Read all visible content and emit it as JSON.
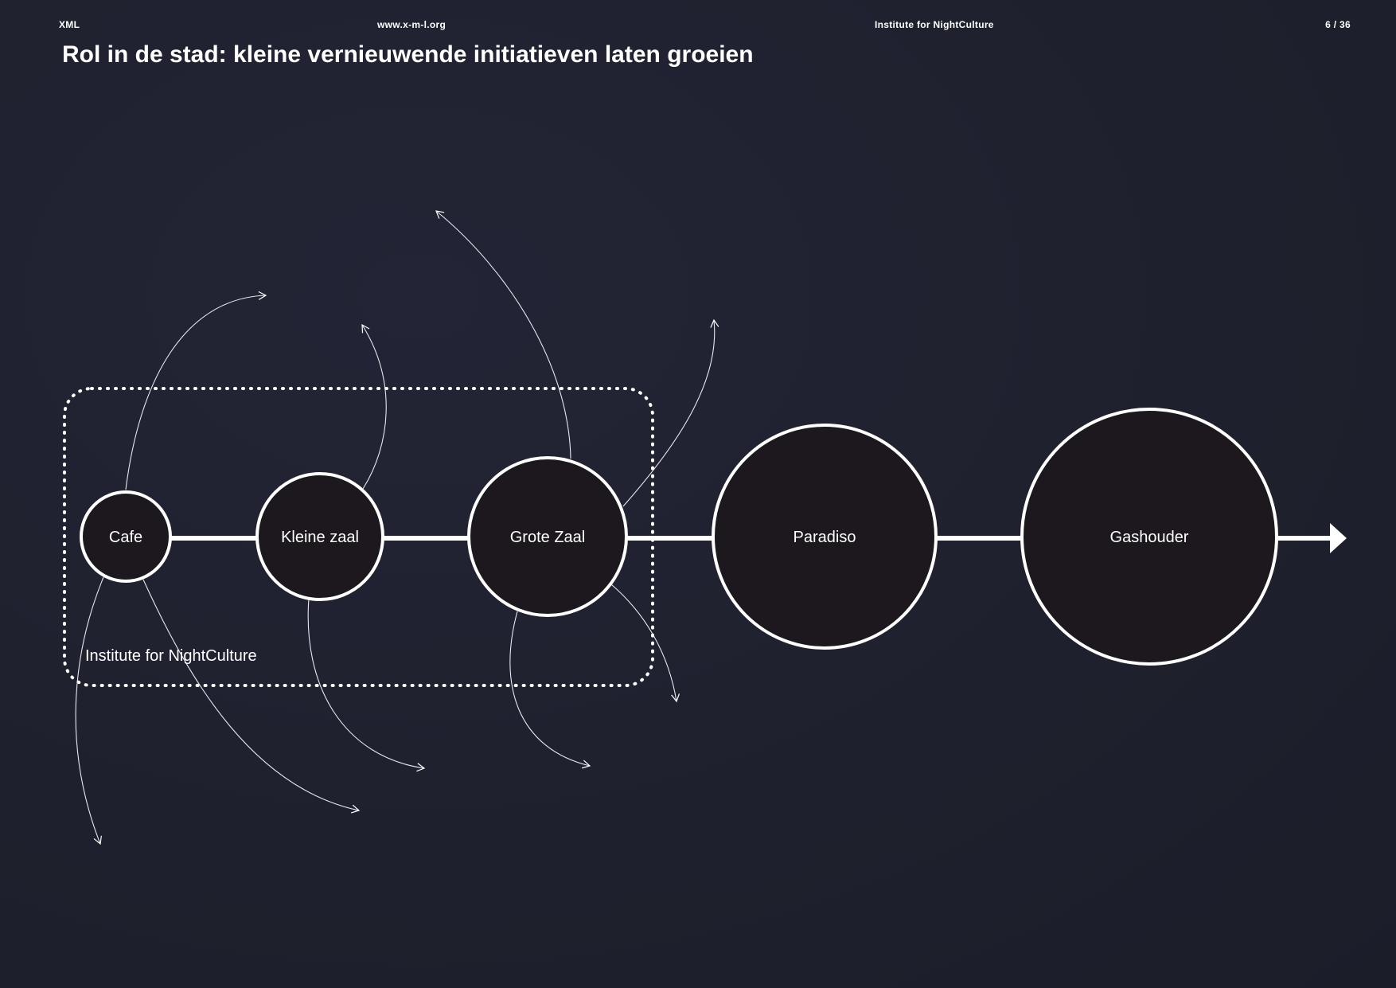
{
  "header": {
    "left": "XML",
    "url": "www.x-m-l.org",
    "institute": "Institute for NightCulture",
    "page": "6 / 36"
  },
  "title": "Rol in de stad: kleine vernieuwende initiatieven laten groeien",
  "diagram": {
    "nodes": [
      {
        "id": "cafe",
        "label": "Cafe"
      },
      {
        "id": "kleine-zaal",
        "label": "Kleine zaal"
      },
      {
        "id": "grote-zaal",
        "label": "Grote Zaal"
      },
      {
        "id": "paradiso",
        "label": "Paradiso"
      },
      {
        "id": "gashouder",
        "label": "Gashouder"
      }
    ],
    "group": {
      "label": "Institute for NightCulture",
      "members": [
        "cafe",
        "kleine-zaal",
        "grote-zaal"
      ]
    },
    "colors": {
      "background": "#1f2130",
      "node_fill": "#1c181e",
      "stroke": "#ffffff"
    }
  }
}
